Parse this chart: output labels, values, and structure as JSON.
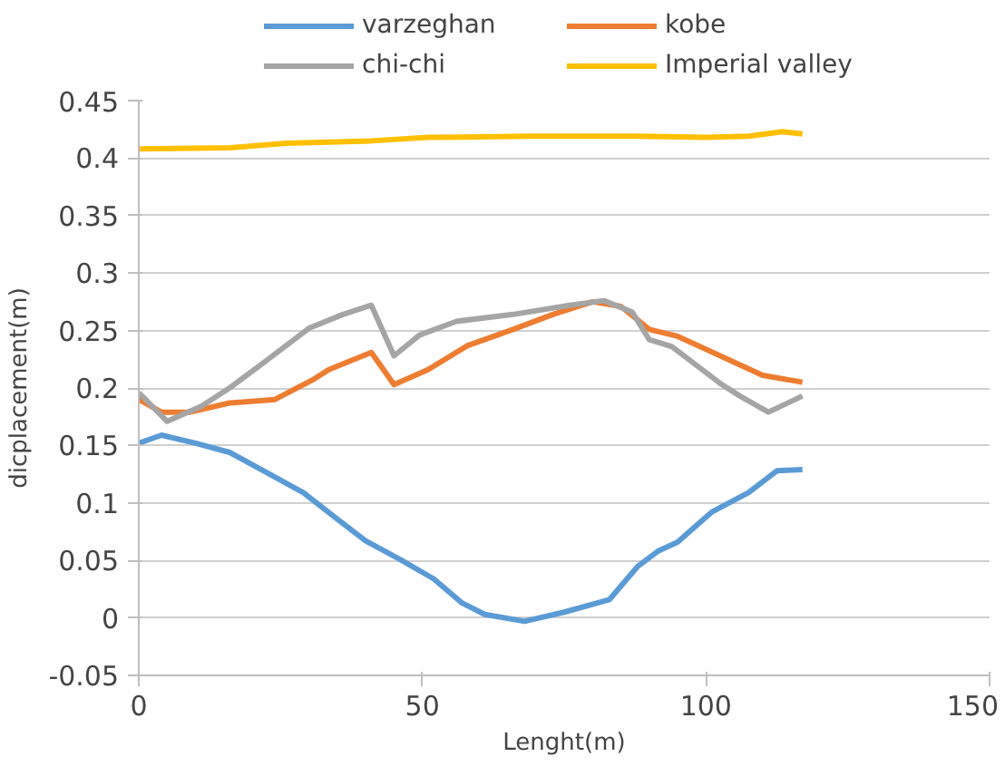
{
  "chart_data": {
    "type": "line",
    "xlabel": "Lenght(m)",
    "ylabel": "dicplacement(m)",
    "xlim": [
      0,
      150
    ],
    "xticks": [
      0,
      50,
      100,
      150
    ],
    "ylim": [
      -0.05,
      0.45
    ],
    "yticks": [
      -0.05,
      0,
      0.05,
      0.1,
      0.15,
      0.2,
      0.25,
      0.3,
      0.35,
      0.4,
      0.45
    ],
    "grid": "y",
    "legend": "top",
    "marker": "none",
    "line_style": "solid",
    "series": [
      {
        "name": "varzeghan",
        "color": "#5b9bd5",
        "x": [
          0,
          4,
          10,
          16,
          22,
          29,
          35,
          40,
          46,
          52,
          57,
          61,
          68,
          75,
          83,
          88,
          91.5,
          95,
          101,
          107.5,
          112.5,
          117
        ],
        "values": [
          0.152,
          0.159,
          0.152,
          0.144,
          0.128,
          0.109,
          0.086,
          0.067,
          0.051,
          0.034,
          0.013,
          0.003,
          -0.003,
          0.005,
          0.016,
          0.045,
          0.058,
          0.066,
          0.092,
          0.109,
          0.128,
          0.129
        ]
      },
      {
        "name": "kobe",
        "color": "#ed7d31",
        "x": [
          0,
          4,
          9,
          16,
          24,
          31,
          33.5,
          41,
          45,
          51,
          58,
          66,
          73,
          80,
          85,
          90,
          95,
          102.5,
          110,
          117
        ],
        "values": [
          0.19,
          0.179,
          0.179,
          0.187,
          0.19,
          0.208,
          0.216,
          0.231,
          0.203,
          0.216,
          0.237,
          0.251,
          0.264,
          0.275,
          0.271,
          0.251,
          0.245,
          0.228,
          0.211,
          0.205
        ]
      },
      {
        "name": "chi-chi",
        "color": "#a5a5a5",
        "x": [
          0,
          5,
          11,
          16,
          22,
          30,
          36,
          41,
          45,
          49.5,
          56,
          66,
          76,
          82,
          87,
          90,
          94,
          102.5,
          106,
          111,
          117
        ],
        "values": [
          0.196,
          0.171,
          0.184,
          0.2,
          0.222,
          0.252,
          0.264,
          0.272,
          0.228,
          0.246,
          0.258,
          0.264,
          0.272,
          0.276,
          0.266,
          0.242,
          0.236,
          0.204,
          0.193,
          0.179,
          0.193
        ]
      },
      {
        "name": "Imperial valley",
        "color": "#ffc000",
        "x": [
          0,
          16,
          26,
          41,
          51,
          69,
          88,
          100,
          107.5,
          113.5,
          117
        ],
        "values": [
          0.408,
          0.409,
          0.413,
          0.415,
          0.418,
          0.419,
          0.419,
          0.418,
          0.419,
          0.423,
          0.421
        ]
      }
    ]
  }
}
